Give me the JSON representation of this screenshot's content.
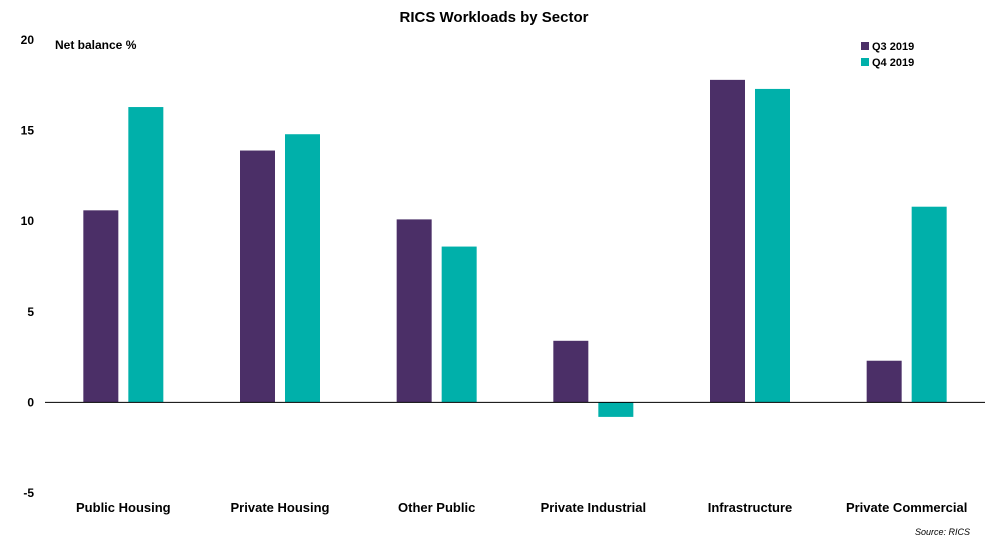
{
  "chart_data": {
    "type": "bar",
    "title": "RICS Workloads by Sector",
    "ylabel": "Net balance %",
    "xlabel": "",
    "categories": [
      "Public Housing",
      "Private Housing",
      "Other Public",
      "Private Industrial",
      "Infrastructure",
      "Private Commercial"
    ],
    "series": [
      {
        "name": "Q3 2019",
        "color": "#4b2f67",
        "values": [
          10.6,
          13.9,
          10.1,
          3.4,
          17.8,
          2.3
        ]
      },
      {
        "name": "Q4 2019",
        "color": "#00b0aa",
        "values": [
          16.3,
          14.8,
          8.6,
          -0.8,
          17.3,
          10.8
        ]
      }
    ],
    "ylim": [
      -5,
      20
    ],
    "yticks": [
      -5,
      0,
      5,
      10,
      15,
      20
    ],
    "grid": false,
    "legend_position": "top-right",
    "source": "Source: RICS"
  }
}
